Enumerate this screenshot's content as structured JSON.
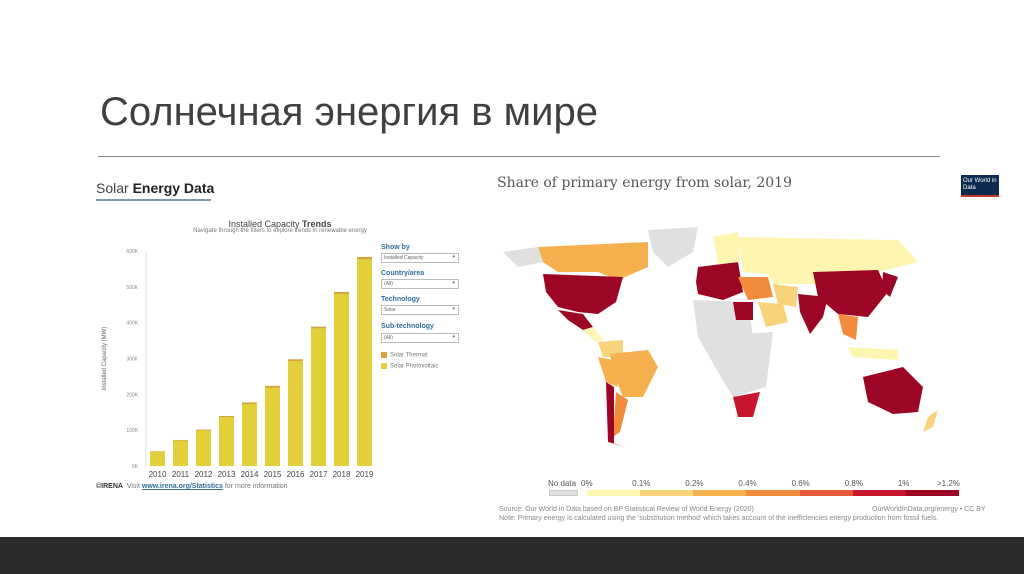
{
  "slide": {
    "title": "Солнечная энергия в мире"
  },
  "left_panel": {
    "header_light": "Solar ",
    "header_bold": "Energy Data",
    "chart_title_light": "Installed Capacity ",
    "chart_title_bold": "Trends",
    "chart_subtitle": "Navigate through the filters to explore trends in renewable energy",
    "filters": [
      {
        "label": "Show by",
        "value": "Installed Capacity"
      },
      {
        "label": "Country/area",
        "value": "(All)"
      },
      {
        "label": "Technology",
        "value": "Solar"
      },
      {
        "label": "Sub-technology",
        "value": "(All)"
      }
    ],
    "credit": "©IRENA",
    "visit_pre": "Visit ",
    "visit_link": "www.irena.org/Statistics",
    "visit_post": " for more information"
  },
  "chart_data": {
    "type": "bar",
    "stacked": true,
    "title": "Installed Capacity Trends",
    "ylabel": "Installed Capacity (MW)",
    "xlabel": "",
    "categories": [
      "2010",
      "2011",
      "2012",
      "2013",
      "2014",
      "2015",
      "2016",
      "2017",
      "2018",
      "2019"
    ],
    "ylim": [
      0,
      600000
    ],
    "yticks": [
      "0K",
      "100K",
      "200K",
      "300K",
      "400K",
      "500K",
      "600K"
    ],
    "series": [
      {
        "name": "Solar Photovoltaic",
        "color": "#e2cf3a",
        "values": [
          40000,
          71000,
          99000,
          136000,
          173000,
          219000,
          293000,
          384000,
          480000,
          577000
        ]
      },
      {
        "name": "Solar Thermal",
        "color": "#d4a43a",
        "values": [
          1300,
          1600,
          2500,
          3500,
          4300,
          4700,
          4800,
          4900,
          5500,
          6300
        ]
      }
    ],
    "legend": "right"
  },
  "map": {
    "title": "Share of primary energy from solar, 2019",
    "logo": "Our World in Data",
    "legend": {
      "no_data": "No data",
      "labels": [
        "0%",
        "0.1%",
        "0.2%",
        "0.4%",
        "0.6%",
        "0.8%",
        "1%",
        ">1.2%"
      ],
      "colors": [
        "#fdf5b0",
        "#f9d37a",
        "#f6b04e",
        "#f28c3c",
        "#e9573a",
        "#c8162f",
        "#9c0624"
      ],
      "no_data_color": "#e0e0e0"
    },
    "source": "Source: Our World in Data based on BP Statistical Review of World Energy (2020)",
    "credit": "OurWorldInData.org/energy • CC BY",
    "note": "Note: Primary energy is calculated using the 'substitution method' which takes account of the inefficiencies energy production from fossil fuels."
  }
}
